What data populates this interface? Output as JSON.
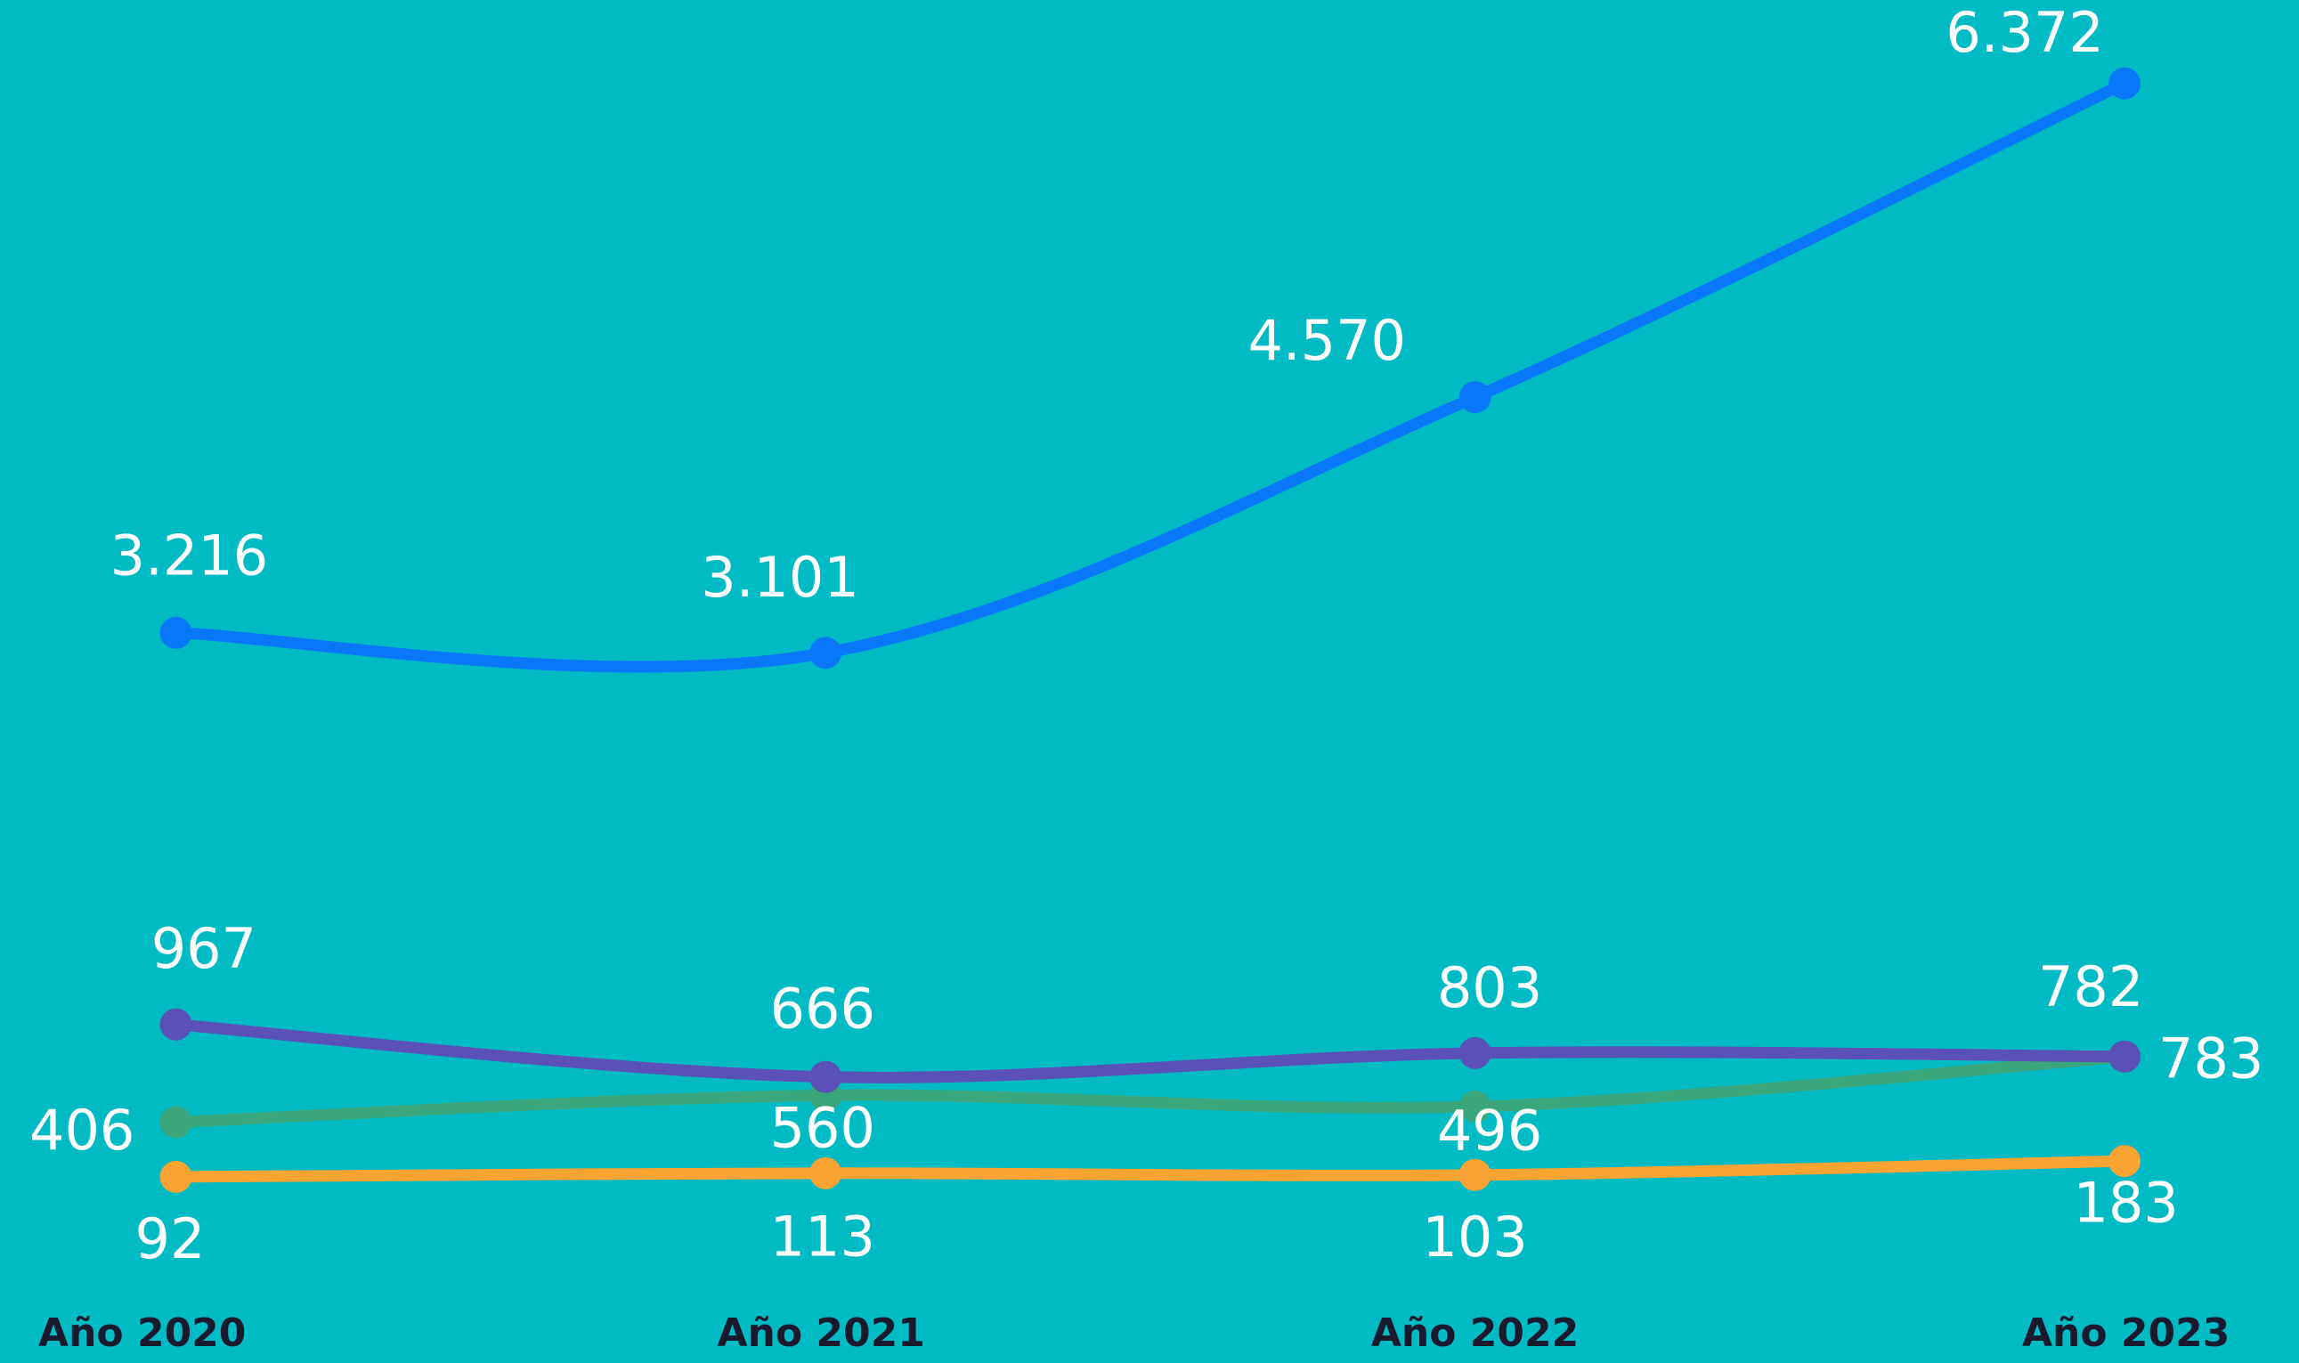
{
  "chart_data": {
    "type": "line",
    "categories": [
      "Año 2020",
      "Año 2021",
      "Año 2022",
      "Año 2023"
    ],
    "series": [
      {
        "name": null,
        "color": "#0a78fa",
        "values": [
          3216,
          3101,
          4570,
          6372
        ],
        "value_labels": [
          "3.216",
          "3.101",
          "4.570",
          "6.372"
        ]
      },
      {
        "name": null,
        "color": "#5b4fb8",
        "values": [
          967,
          666,
          803,
          783
        ]
      },
      {
        "name": null,
        "color": "#3aa67c",
        "values": [
          406,
          560,
          496,
          782
        ]
      },
      {
        "name": null,
        "color": "#f8a332",
        "values": [
          92,
          113,
          103,
          183
        ]
      }
    ],
    "ylim": [
      -977,
      6851
    ],
    "grid": false,
    "legend": false
  }
}
